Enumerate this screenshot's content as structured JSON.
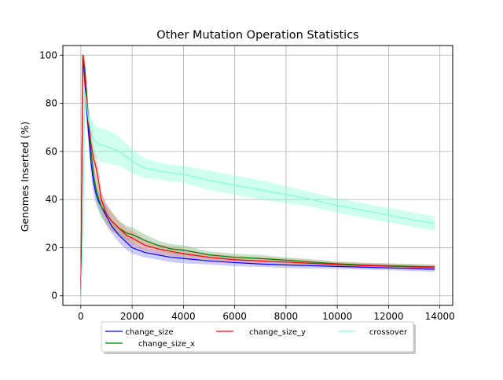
{
  "chart_data": {
    "type": "line",
    "title": "Other Mutation Operation Statistics",
    "xlabel": "",
    "ylabel": "Genomes Inserted (%)",
    "xlim": [
      -700,
      14500
    ],
    "ylim": [
      -4,
      104
    ],
    "xticks": [
      0,
      2000,
      4000,
      6000,
      8000,
      10000,
      12000,
      14000
    ],
    "yticks": [
      0,
      20,
      40,
      60,
      80,
      100
    ],
    "grid": true,
    "legend_position": "below-center",
    "shaded_bands": true,
    "series": [
      {
        "name": "change_size",
        "color": "#0000ff",
        "band_color": "#7b7bf0",
        "x": [
          0,
          80,
          150,
          220,
          300,
          400,
          500,
          600,
          700,
          800,
          1000,
          1200,
          1500,
          1800,
          2000,
          2500,
          3000,
          3500,
          4000,
          5000,
          6000,
          7000,
          8000,
          9000,
          10000,
          11000,
          12000,
          13000,
          13800
        ],
        "y": [
          0,
          100,
          90,
          78,
          68,
          55,
          47,
          42,
          39,
          37,
          33,
          29,
          25,
          22,
          20,
          18,
          17,
          16,
          15.5,
          14.5,
          13.8,
          13.2,
          12.8,
          12.5,
          12.2,
          11.9,
          11.6,
          11.3,
          11.0
        ],
        "band": [
          0,
          4,
          4,
          5,
          5,
          5,
          5,
          4,
          4,
          4,
          4,
          3,
          3,
          3,
          2.5,
          2,
          2,
          2,
          2,
          1.5,
          1.5,
          1.2,
          1.2,
          1.2,
          1,
          1,
          1,
          1,
          1
        ]
      },
      {
        "name": "change_size_x",
        "color": "#008000",
        "band_color": "#6fb36f",
        "x": [
          0,
          80,
          150,
          220,
          300,
          400,
          500,
          600,
          700,
          800,
          1000,
          1200,
          1500,
          1800,
          2000,
          2500,
          3000,
          3500,
          4000,
          5000,
          6000,
          7000,
          8000,
          9000,
          10000,
          11000,
          12000,
          13000,
          13800
        ],
        "y": [
          0,
          100,
          95,
          85,
          72,
          60,
          50,
          44,
          40,
          37,
          34,
          31,
          28,
          26,
          25.5,
          23,
          21,
          19.5,
          19,
          17,
          16,
          15.5,
          14.8,
          14,
          13.3,
          12.8,
          12.5,
          12.2,
          12.0
        ],
        "band": [
          0,
          4,
          5,
          5,
          6,
          6,
          5,
          5,
          4,
          4,
          4,
          4,
          3,
          3,
          3,
          2.5,
          2,
          2,
          2,
          1.5,
          1.5,
          1.5,
          1.2,
          1.2,
          1,
          1,
          1,
          1,
          1
        ]
      },
      {
        "name": "change_size_y",
        "color": "#ff0000",
        "band_color": "#e88080",
        "x": [
          0,
          80,
          150,
          220,
          300,
          400,
          500,
          600,
          700,
          800,
          1000,
          1200,
          1500,
          1800,
          2000,
          2500,
          3000,
          3500,
          4000,
          5000,
          6000,
          7000,
          8000,
          9000,
          10000,
          11000,
          12000,
          13000,
          13800
        ],
        "y": [
          0,
          100,
          93,
          82,
          72,
          63,
          57,
          53,
          47,
          40,
          34,
          31,
          28,
          25,
          24,
          21,
          19.5,
          18.5,
          17.5,
          16,
          15,
          14.5,
          14,
          13.5,
          13,
          12.6,
          12.3,
          12.0,
          11.8
        ],
        "band": [
          0,
          5,
          6,
          6,
          6,
          6,
          5,
          5,
          5,
          4,
          4,
          4,
          3,
          3,
          3,
          2.5,
          2,
          2,
          2,
          1.5,
          1.5,
          1.5,
          1.5,
          1.2,
          1,
          1,
          1,
          1,
          1
        ]
      },
      {
        "name": "crossover",
        "color": "#7fffd4",
        "band_color": "#7fffd4",
        "x": [
          0,
          80,
          150,
          220,
          300,
          400,
          500,
          700,
          1000,
          1500,
          2000,
          2500,
          3000,
          3500,
          4000,
          5000,
          6000,
          7000,
          8000,
          9000,
          10000,
          11000,
          12000,
          13000,
          13800
        ],
        "y": [
          0,
          25,
          85,
          80,
          73,
          68,
          65,
          63,
          62,
          60,
          56,
          53,
          52,
          51,
          50.5,
          48,
          46,
          44,
          42,
          40,
          37.5,
          35.5,
          33.5,
          31.5,
          30
        ],
        "band": [
          0,
          3,
          6,
          6,
          6,
          6,
          6,
          7,
          7,
          6,
          5,
          4,
          3.5,
          3.5,
          3.5,
          4,
          4,
          4,
          3.5,
          3,
          3,
          3,
          3,
          3,
          3
        ]
      }
    ]
  }
}
